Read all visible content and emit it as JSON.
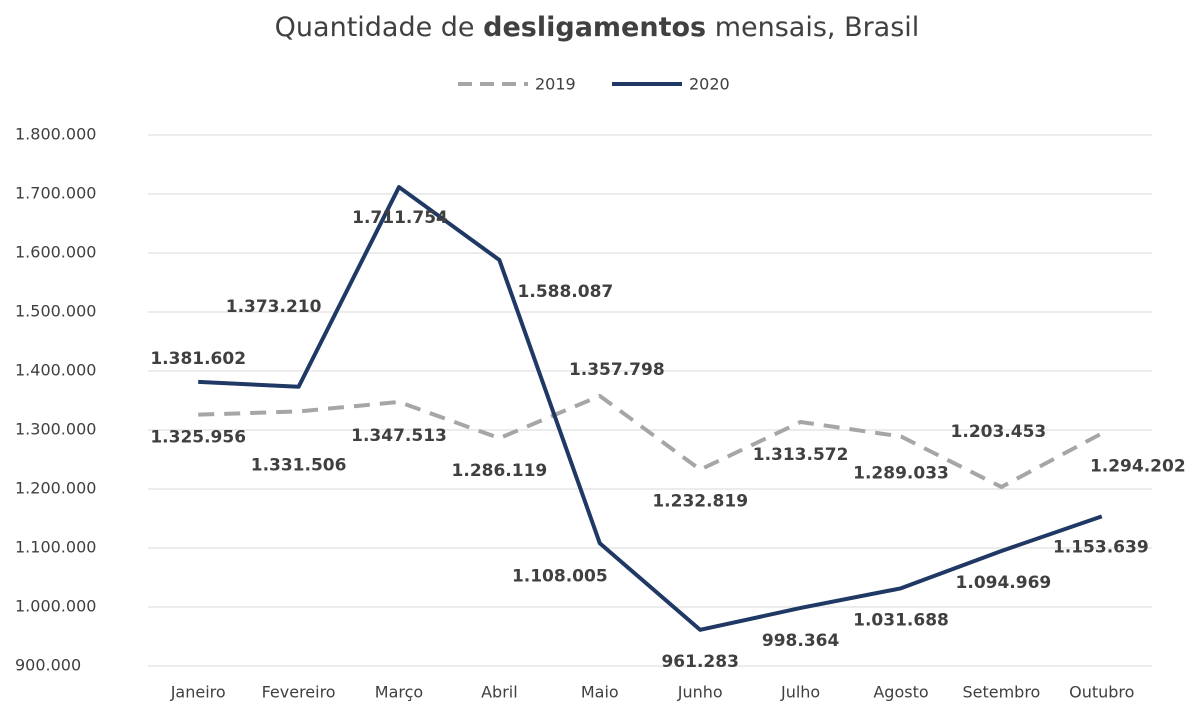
{
  "chart_data": {
    "type": "line",
    "title": [
      "Quantidade de ",
      "desligamentos",
      " mensais, Brasil"
    ],
    "categories": [
      "Janeiro",
      "Fevereiro",
      "Março",
      "Abril",
      "Maio",
      "Junho",
      "Julho",
      "Agosto",
      "Setembro",
      "Outubro"
    ],
    "series": [
      {
        "name": "2019",
        "color": "#a6a6a6",
        "dashed": true,
        "values": [
          1325956,
          1331506,
          1347513,
          1286119,
          1357798,
          1232819,
          1313572,
          1289033,
          1203453,
          1294202
        ],
        "value_labels": [
          "1.325.956",
          "1.331.506",
          "1.347.513",
          "1.286.119",
          "1.357.798",
          "1.232.819",
          "1.313.572",
          "1.289.033",
          "1.203.453",
          "1.294.202"
        ]
      },
      {
        "name": "2020",
        "color": "#1f3864",
        "dashed": false,
        "values": [
          1381602,
          1373210,
          1711754,
          1588087,
          1108005,
          961283,
          998364,
          1031688,
          1094969,
          1153639
        ],
        "value_labels": [
          "1.381.602",
          "1.373.210",
          "1.711.754",
          "1.588.087",
          "1.108.005",
          "961.283",
          "998.364",
          "1.031.688",
          "1.094.969",
          "1.153.639"
        ]
      }
    ],
    "ylim": [
      900000,
      1800000
    ],
    "yticks": [
      {
        "value": 900000,
        "label": "900.000"
      },
      {
        "value": 1000000,
        "label": "1.000.000"
      },
      {
        "value": 1100000,
        "label": "1.100.000"
      },
      {
        "value": 1200000,
        "label": "1.200.000"
      },
      {
        "value": 1300000,
        "label": "1.300.000"
      },
      {
        "value": 1400000,
        "label": "1.400.000"
      },
      {
        "value": 1500000,
        "label": "1.500.000"
      },
      {
        "value": 1600000,
        "label": "1.600.000"
      },
      {
        "value": 1700000,
        "label": "1.700.000"
      },
      {
        "value": 1800000,
        "label": "1.800.000"
      }
    ],
    "grid": true,
    "legend": "top"
  }
}
